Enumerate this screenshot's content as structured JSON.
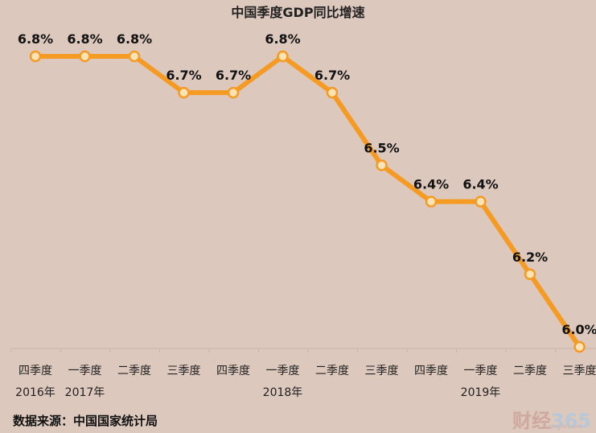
{
  "chart_data": {
    "type": "line",
    "title": "中国季度GDP同比增速",
    "categories": [
      "四季度",
      "一季度",
      "二季度",
      "三季度",
      "四季度",
      "一季度",
      "二季度",
      "三季度",
      "四季度",
      "一季度",
      "二季度",
      "三季度"
    ],
    "year_labels": [
      "2016年",
      "2017年",
      "",
      "",
      "",
      "2018年",
      "",
      "",
      "",
      "2019年",
      "",
      ""
    ],
    "values": [
      6.8,
      6.8,
      6.8,
      6.7,
      6.7,
      6.8,
      6.7,
      6.5,
      6.4,
      6.4,
      6.2,
      6.0
    ],
    "value_labels": [
      "6.8%",
      "6.8%",
      "6.8%",
      "6.7%",
      "6.7%",
      "6.8%",
      "6.7%",
      "6.5%",
      "6.4%",
      "6.4%",
      "6.2%",
      "6.0%"
    ],
    "ylim": [
      6.0,
      6.8
    ],
    "grid": false,
    "line_color": "#f59a23",
    "marker_fill": "#fbe3b6"
  },
  "source_text": "数据来源：中国国家统计局",
  "watermark": {
    "brand": "财经",
    "number": "365",
    "url": "caijing365.com"
  }
}
